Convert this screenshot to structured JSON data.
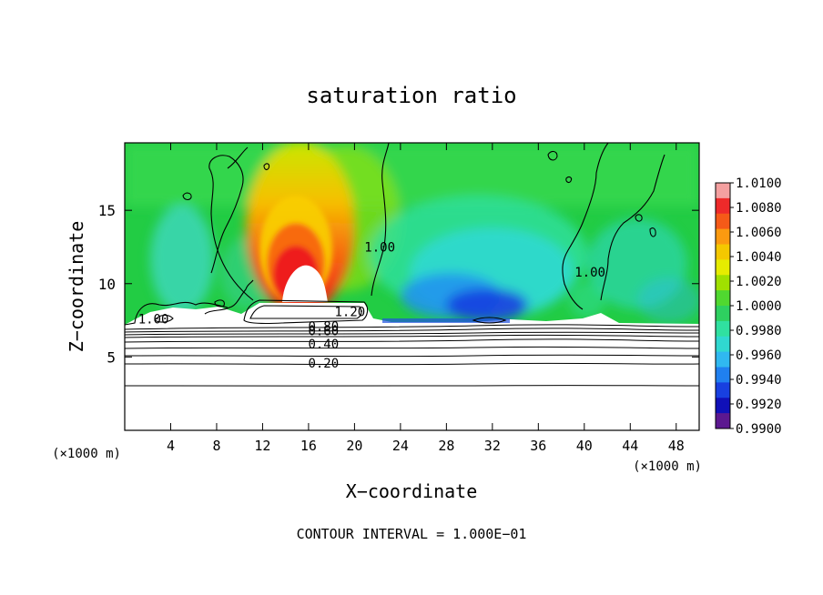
{
  "chart_data": {
    "type": "heatmap",
    "title": "saturation ratio",
    "xlabel": "X−coordinate",
    "ylabel": "Z−coordinate",
    "x_unit": "(×1000 m)",
    "y_unit": "(×1000 m)",
    "xlim": [
      0,
      50
    ],
    "ylim": [
      0,
      19.6
    ],
    "xticks": [
      4,
      8,
      12,
      16,
      20,
      24,
      28,
      32,
      36,
      40,
      44,
      48
    ],
    "yticks": [
      5,
      10,
      15
    ],
    "footer": "CONTOUR INTERVAL = 1.000E−01",
    "colorbar": {
      "tick_labels": [
        "1.0100",
        "1.0080",
        "1.0060",
        "1.0040",
        "1.0020",
        "1.0000",
        "0.9980",
        "0.9960",
        "0.9940",
        "0.9920",
        "0.9900"
      ],
      "colors": [
        "#f4a0a0",
        "#ee2a2a",
        "#f55a18",
        "#fb9a10",
        "#f4c800",
        "#e6ec00",
        "#a0e000",
        "#50d830",
        "#2ed060",
        "#30e0a0",
        "#30d8d0",
        "#30b8f0",
        "#2080f0",
        "#1840e0",
        "#1010b8",
        "#5c1890"
      ]
    },
    "contour_labels": [
      {
        "value": "1.20",
        "x": 19.6,
        "z": 8.1
      },
      {
        "value": "0.80",
        "x": 17.3,
        "z": 7.1
      },
      {
        "value": "0.60",
        "x": 17.3,
        "z": 6.8
      },
      {
        "value": "0.40",
        "x": 17.3,
        "z": 5.9
      },
      {
        "value": "0.20",
        "x": 17.3,
        "z": 4.6
      },
      {
        "value": "1.00",
        "x": 2.5,
        "z": 7.6
      },
      {
        "value": "1.00",
        "x": 22.2,
        "z": 12.5
      },
      {
        "value": "1.00",
        "x": 40.5,
        "z": 10.8
      }
    ],
    "contour_levels_below_cloud": [
      7.4,
      7.2,
      7.0,
      6.8,
      6.5,
      6.0,
      5.4,
      4.6,
      3.1
    ]
  }
}
